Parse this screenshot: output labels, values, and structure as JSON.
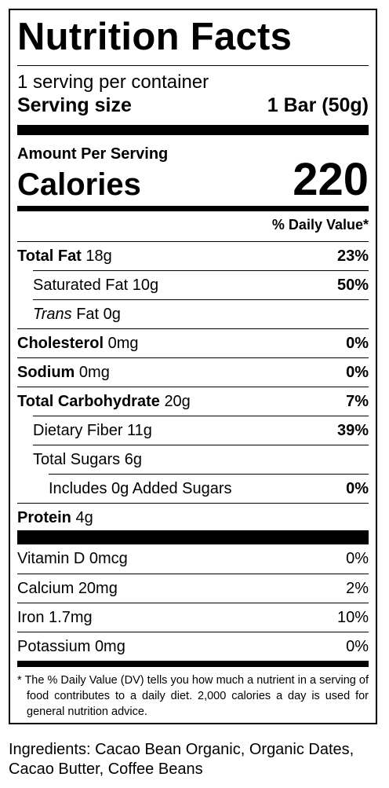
{
  "title": "Nutrition Facts",
  "servings_per_container": "1 serving per container",
  "serving_size_label": "Serving size",
  "serving_size_value": "1 Bar (50g)",
  "amount_per_serving": "Amount Per Serving",
  "calories_label": "Calories",
  "calories_value": "220",
  "daily_value_header": "% Daily Value*",
  "nutrients": [
    {
      "name": "Total Fat",
      "amount": "18g",
      "dv": "23%"
    },
    {
      "name": "Saturated Fat",
      "amount": "10g",
      "dv": "50%"
    },
    {
      "name_italic": "Trans",
      "name": "Fat",
      "amount": "0g",
      "dv": ""
    },
    {
      "name": "Cholesterol",
      "amount": "0mg",
      "dv": "0%"
    },
    {
      "name": "Sodium",
      "amount": "0mg",
      "dv": "0%"
    },
    {
      "name": "Total Carbohydrate",
      "amount": "20g",
      "dv": "7%"
    },
    {
      "name": "Dietary Fiber",
      "amount": "11g",
      "dv": "39%"
    },
    {
      "name": "Total Sugars",
      "amount": "6g",
      "dv": ""
    },
    {
      "name": "Includes 0g Added Sugars",
      "amount": "",
      "dv": "0%"
    },
    {
      "name": "Protein",
      "amount": "4g",
      "dv": ""
    }
  ],
  "vitamins": [
    {
      "name": "Vitamin D",
      "amount": "0mcg",
      "dv": "0%"
    },
    {
      "name": "Calcium",
      "amount": "20mg",
      "dv": "2%"
    },
    {
      "name": "Iron",
      "amount": "1.7mg",
      "dv": "10%"
    },
    {
      "name": "Potassium",
      "amount": "0mg",
      "dv": "0%"
    }
  ],
  "footnote": "* The % Daily Value (DV) tells you how much a nutrient in a serving of food contributes to a daily diet. 2,000 calories a day is used for general nutrition advice.",
  "ingredients": "Ingredients: Cacao Bean Organic, Organic Dates, Cacao Butter, Coffee Beans"
}
